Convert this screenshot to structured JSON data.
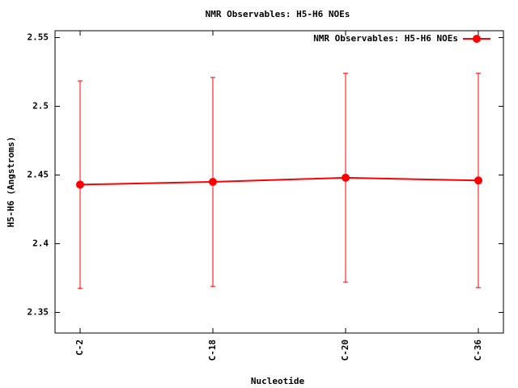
{
  "chart_data": {
    "type": "line",
    "title": "NMR Observables: H5-H6 NOEs",
    "x_label": "Nucleotide",
    "y_label": "H5-H6 (Angstroms)",
    "categories": [
      "C-2",
      "C-18",
      "C-20",
      "C-36"
    ],
    "series": [
      {
        "name": "NMR Observables: H5-H6 NOEs",
        "color": "#ff0000",
        "values": [
          2.443,
          2.445,
          2.448,
          2.446
        ],
        "errors": [
          0.0755,
          0.076,
          0.076,
          0.078
        ]
      }
    ],
    "ylim": [
      2.335,
      2.555
    ],
    "yticks": [
      2.35,
      2.4,
      2.45,
      2.5,
      2.55
    ],
    "legend": "top-right",
    "grid": false
  }
}
